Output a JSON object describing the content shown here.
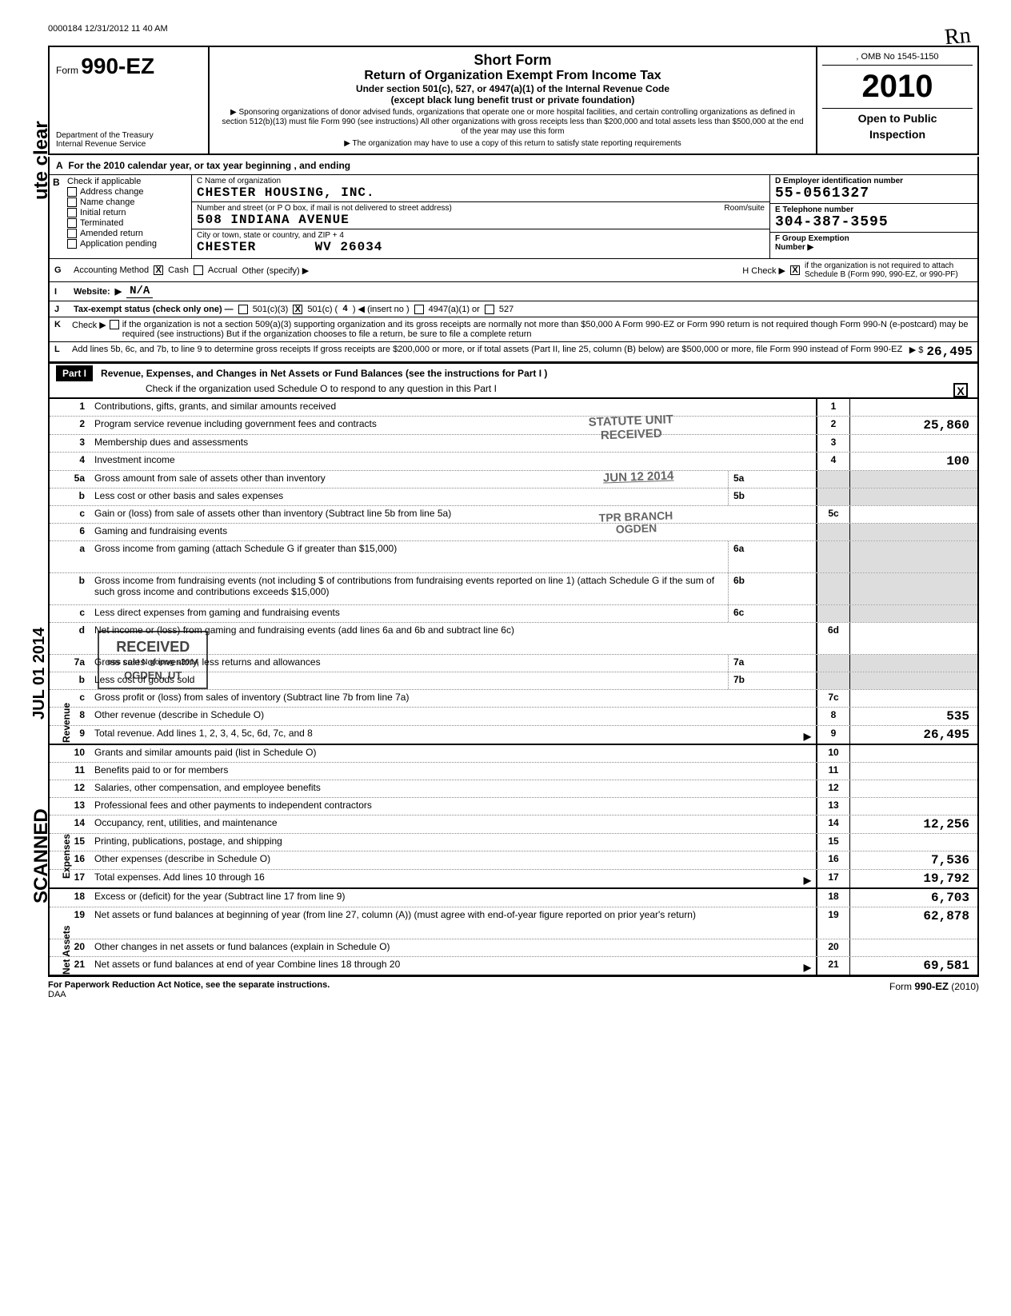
{
  "timestamp": "0000184 12/31/2012 11 40 AM",
  "initials": "Rn",
  "form": {
    "label": "Form",
    "name": "990-EZ",
    "dept1": "Department of the Treasury",
    "dept2": "Internal Revenue Service",
    "title1": "Short Form",
    "title2": "Return of Organization Exempt From Income Tax",
    "subtitle": "Under section 501(c), 527, or 4947(a)(1) of the Internal Revenue Code",
    "subtitle2": "(except black lung benefit trust or private foundation)",
    "note1": "▶ Sponsoring organizations of donor advised funds, organizations that operate one or more hospital facilities, and certain controlling organizations as defined in section 512(b)(13) must file Form 990 (see instructions) All other organizations with gross receipts less than $200,000 and total assets less than $500,000 at the end of the year may use this form",
    "note2": "▶ The organization may have to use a copy of this return to satisfy state reporting requirements",
    "omb": ", OMB No 1545-1150",
    "year": "2010",
    "open": "Open to Public",
    "insp": "Inspection"
  },
  "vert": {
    "clear": "ute clear",
    "date": "JUL 01 2014",
    "scanned": "SCANNED"
  },
  "lineA": "For the 2010 calendar year, or tax year beginning                                    , and ending",
  "blockB": {
    "head": "Check if applicable",
    "o1": "Address change",
    "o2": "Name change",
    "o3": "Initial return",
    "o4": "Terminated",
    "o5": "Amended return",
    "o6": "Application pending"
  },
  "blockC": {
    "l1": "C  Name of organization",
    "v1": "CHESTER HOUSING, INC.",
    "l2": "Number and street (or P O  box, if mail is not delivered to street address)",
    "rs": "Room/suite",
    "v2": "508 INDIANA AVENUE",
    "l3": "City or town, state or country, and ZIP + 4",
    "v3a": "CHESTER",
    "v3b": "WV  26034"
  },
  "blockD": {
    "l1": "D  Employer identification number",
    "v1": "55-0561327",
    "l2": "E  Telephone number",
    "v2": "304-387-3595",
    "l3": "F  Group Exemption",
    "l3b": "Number              ▶"
  },
  "lineG": {
    "lead": "G",
    "label": "Accounting Method",
    "cash": "Cash",
    "accrual": "Accrual",
    "other": "Other (specify) ▶",
    "h": "H   Check ▶",
    "htxt": "if the organization is not required to attach Schedule B (Form 990, 990-EZ, or 990-PF)"
  },
  "lineI": {
    "lead": "I",
    "label": "Website:",
    "arrow": "▶",
    "val": "N/A"
  },
  "lineJ": {
    "lead": "J",
    "label": "Tax-exempt status (check only one) —",
    "o1": "501(c)(3)",
    "o2": "501(c) (",
    "ins": "4",
    "o2b": ") ◀ (insert no )",
    "o3": "4947(a)(1) or",
    "o4": "527"
  },
  "lineK": {
    "lead": "K",
    "label": "Check ▶",
    "txt": "if the organization is not a section 509(a)(3) supporting organization and its gross receipts are normally not more than $50,000  A Form 990-EZ or Form 990 return is not required though Form 990-N (e-postcard) may be required (see instructions)  But if the organization chooses to file a return, be sure to file a complete return"
  },
  "lineL": {
    "lead": "L",
    "txt": "Add lines 5b, 6c, and 7b, to line 9 to determine gross receipts  If gross receipts are $200,000 or more, or if total assets (Part II, line 25, column (B) below) are $500,000 or more, file Form 990 instead of Form 990-EZ",
    "arrow": "▶  $",
    "amt": "26,495"
  },
  "part1": {
    "label": "Part I",
    "title": "Revenue, Expenses, and Changes in Net Assets or Fund Balances   (see the instructions for Part I )",
    "sub": "Check if the organization used Schedule O to respond to any question in this Part I",
    "chk": "X"
  },
  "stamps": {
    "s1a": "STATUTE UNIT",
    "s1b": "RECEIVED",
    "s2": "JUN  12 2014",
    "s3a": "TPR BRANCH",
    "s3b": "OGDEN",
    "rec": "RECEIVED",
    "recdate": "oss  cost N  gopog s2014",
    "recloc": "OGDEN, UT"
  },
  "rows": [
    {
      "n": "1",
      "desc": "Contributions, gifts, grants, and similar amounts received",
      "rn": "1",
      "amt": ""
    },
    {
      "n": "2",
      "desc": "Program service revenue including government fees and contracts",
      "rn": "2",
      "amt": "25,860"
    },
    {
      "n": "3",
      "desc": "Membership dues and assessments",
      "rn": "3",
      "amt": ""
    },
    {
      "n": "4",
      "desc": "Investment income",
      "rn": "4",
      "amt": "100"
    },
    {
      "n": "5a",
      "desc": "Gross amount from sale of assets other than inventory",
      "mid": "5a",
      "shade": true
    },
    {
      "n": "b",
      "desc": "Less  cost or other basis and sales expenses",
      "mid": "5b",
      "shade": true
    },
    {
      "n": "c",
      "desc": "Gain or (loss) from sale of assets other than inventory (Subtract line 5b from line 5a)",
      "rn": "5c",
      "amt": ""
    },
    {
      "n": "6",
      "desc": "Gaming and fundraising events",
      "shade": true,
      "noright": true
    },
    {
      "n": "a",
      "desc": "Gross income from gaming (attach Schedule G if greater than $15,000)",
      "mid": "6a",
      "shade": true,
      "tall": true
    },
    {
      "n": "b",
      "desc": "Gross income from fundraising events (not including   $                                        of contributions from fundraising events reported on line 1) (attach Schedule G if the sum of such gross income and contributions exceeds $15,000)",
      "mid": "6b",
      "shade": true,
      "tall": true
    },
    {
      "n": "c",
      "desc": "Less  direct expenses from gaming and fundraising events",
      "mid": "6c",
      "shade": true
    },
    {
      "n": "d",
      "desc": "Net income or (loss) from gaming and fundraising events (add lines 6a and 6b and subtract line 6c)",
      "rn": "6d",
      "amt": "",
      "tall": true
    },
    {
      "n": "7a",
      "desc": "Gross sales of inventory, less returns and allowances",
      "mid": "7a",
      "shade": true
    },
    {
      "n": "b",
      "desc": "Less  cost of goods sold",
      "mid": "7b",
      "shade": true
    },
    {
      "n": "c",
      "desc": "Gross profit or (loss) from sales of inventory (Subtract line 7b from line 7a)",
      "rn": "7c",
      "amt": ""
    },
    {
      "n": "8",
      "desc": "Other revenue (describe in Schedule O)",
      "rn": "8",
      "amt": "535"
    },
    {
      "n": "9",
      "desc": "Total revenue. Add lines 1, 2, 3, 4, 5c, 6d, 7c, and 8",
      "rn": "9",
      "amt": "26,495",
      "arrow": true,
      "thick": true
    },
    {
      "n": "10",
      "desc": "Grants and similar amounts paid (list in Schedule O)",
      "rn": "10",
      "amt": ""
    },
    {
      "n": "11",
      "desc": "Benefits paid to or for members",
      "rn": "11",
      "amt": ""
    },
    {
      "n": "12",
      "desc": "Salaries, other compensation, and employee benefits",
      "rn": "12",
      "amt": ""
    },
    {
      "n": "13",
      "desc": "Professional fees and other payments to independent contractors",
      "rn": "13",
      "amt": ""
    },
    {
      "n": "14",
      "desc": "Occupancy, rent, utilities, and maintenance",
      "rn": "14",
      "amt": "12,256"
    },
    {
      "n": "15",
      "desc": "Printing, publications, postage, and shipping",
      "rn": "15",
      "amt": ""
    },
    {
      "n": "16",
      "desc": "Other expenses (describe in Schedule O)",
      "rn": "16",
      "amt": "7,536"
    },
    {
      "n": "17",
      "desc": "Total expenses. Add lines 10 through 16",
      "rn": "17",
      "amt": "19,792",
      "arrow": true,
      "thick": true
    },
    {
      "n": "18",
      "desc": "Excess or (deficit) for the year (Subtract line 17 from line 9)",
      "rn": "18",
      "amt": "6,703"
    },
    {
      "n": "19",
      "desc": "Net assets or fund balances at beginning of year (from line 27, column (A)) (must agree with end-of-year figure reported on prior year's return)",
      "rn": "19",
      "amt": "62,878",
      "tall": true
    },
    {
      "n": "20",
      "desc": "Other changes in net assets or fund balances (explain in Schedule O)",
      "rn": "20",
      "amt": ""
    },
    {
      "n": "21",
      "desc": "Net assets or fund balances at end of year  Combine lines 18 through 20",
      "rn": "21",
      "amt": "69,581",
      "arrow": true
    }
  ],
  "footer": {
    "left": "For Paperwork Reduction Act Notice, see the separate instructions.",
    "daa": "DAA",
    "right": "Form 990-EZ (2010)"
  }
}
